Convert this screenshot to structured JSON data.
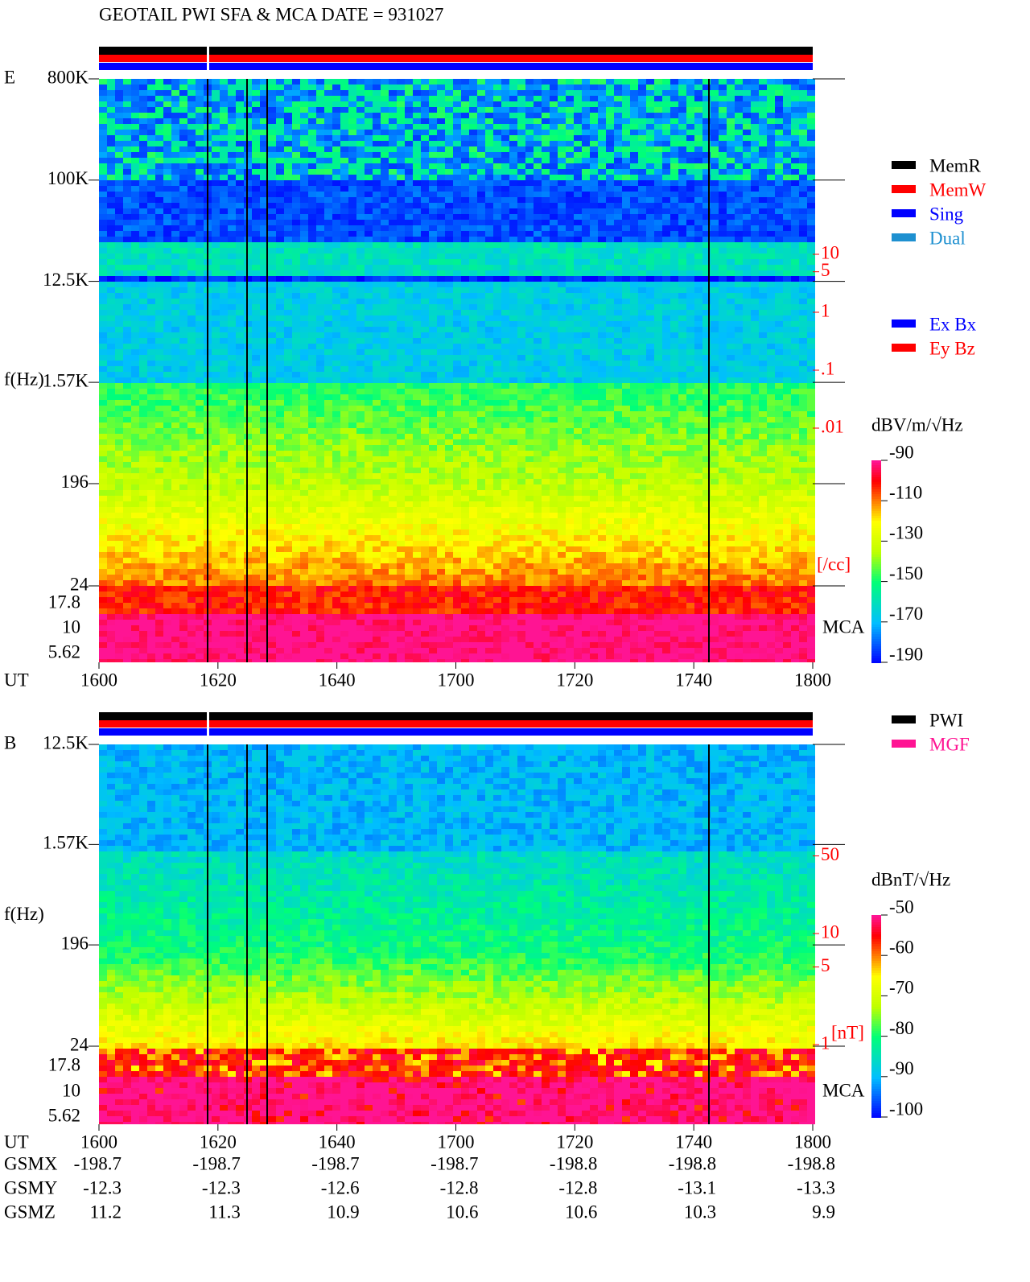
{
  "chart_data": [
    {
      "type": "spectrogram",
      "title": "GEOTAIL  PWI SFA & MCA   DATE = 931027",
      "panel_label": "E",
      "ylabel": "f(Hz)",
      "xlabel": "UT",
      "log_y": true,
      "ylim": [
        24,
        800000
      ],
      "yticks": [
        {
          "value": 800000,
          "label": "800K"
        },
        {
          "value": 100000,
          "label": "100K"
        },
        {
          "value": 12500,
          "label": "12.5K"
        },
        {
          "value": 1570,
          "label": "1.57K"
        },
        196,
        24
      ],
      "mca_label": "MCA",
      "mca_ticks": [
        17.8,
        10,
        5.62
      ],
      "xlim": [
        960,
        1080
      ],
      "xticks": [
        {
          "value": 960,
          "label": "1600"
        },
        {
          "value": 980,
          "label": "1620"
        },
        {
          "value": 1000,
          "label": "1640"
        },
        {
          "value": 1020,
          "label": "1700"
        },
        {
          "value": 1040,
          "label": "1720"
        },
        {
          "value": 1060,
          "label": "1740"
        },
        {
          "value": 1080,
          "label": "1800"
        }
      ],
      "colorbar": {
        "label": "dBV/m/√Hz",
        "lim": [
          -190,
          -90
        ],
        "ticks": [
          -90,
          -110,
          -130,
          -150,
          -170,
          -190
        ]
      },
      "y2_log": true,
      "y2ticks": [
        10,
        5,
        1,
        {
          "value": 0.1,
          "label": ".1"
        },
        {
          "value": 0.01,
          "label": ".01"
        }
      ],
      "y2label": "[/cc]",
      "legends": [
        [
          {
            "name": "MemR",
            "color": "#000000"
          },
          {
            "name": "MemW",
            "color": "#ff0000"
          },
          {
            "name": "Sing",
            "color": "#0000ff"
          },
          {
            "name": "Dual",
            "color": "#1e90d0"
          }
        ],
        [
          {
            "name": "Ex Bx",
            "color": "#0000ff"
          },
          {
            "name": "Ey Bz",
            "color": "#ff0000"
          }
        ]
      ]
    },
    {
      "type": "spectrogram",
      "panel_label": "B",
      "ylabel": "f(Hz)",
      "xlabel": "UT",
      "log_y": true,
      "ylim": [
        24,
        12500
      ],
      "yticks": [
        {
          "value": 12500,
          "label": "12.5K"
        },
        {
          "value": 1570,
          "label": "1.57K"
        },
        196,
        24
      ],
      "mca_label": "MCA",
      "mca_ticks": [
        17.8,
        10,
        5.62
      ],
      "xlim": [
        960,
        1080
      ],
      "xticks": [
        {
          "value": 960,
          "label": "1600"
        },
        {
          "value": 980,
          "label": "1620"
        },
        {
          "value": 1000,
          "label": "1640"
        },
        {
          "value": 1020,
          "label": "1700"
        },
        {
          "value": 1040,
          "label": "1720"
        },
        {
          "value": 1060,
          "label": "1740"
        },
        {
          "value": 1080,
          "label": "1800"
        }
      ],
      "colorbar": {
        "label": "dBnT/√Hz",
        "lim": [
          -100,
          -50
        ],
        "ticks": [
          -50,
          -60,
          -70,
          -80,
          -90,
          -100
        ]
      },
      "y2_log": true,
      "y2ticks": [
        50,
        10,
        5,
        1
      ],
      "y2label": "[nT]",
      "legends": [
        [
          {
            "name": "PWI",
            "color": "#000000"
          },
          {
            "name": "MGF",
            "color": "#ff1493"
          }
        ]
      ]
    }
  ],
  "orbit": {
    "rows": [
      {
        "name": "GSMX",
        "values": [
          -198.7,
          -198.7,
          -198.7,
          -198.7,
          -198.8,
          -198.8,
          -198.8
        ]
      },
      {
        "name": "GSMY",
        "values": [
          -12.3,
          -12.3,
          -12.6,
          -12.8,
          -12.8,
          -13.1,
          -13.3
        ]
      },
      {
        "name": "GSMZ",
        "values": [
          11.2,
          11.3,
          10.9,
          10.6,
          10.6,
          10.3,
          9.9
        ]
      }
    ]
  }
}
